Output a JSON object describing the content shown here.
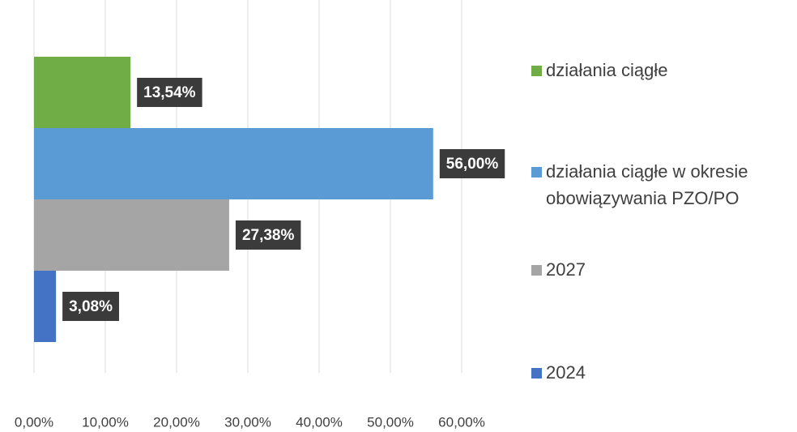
{
  "chart_data": {
    "type": "bar",
    "orientation": "horizontal",
    "categories": [
      null
    ],
    "series": [
      {
        "name": "działania ciągłe",
        "color": "#70ad47",
        "values": [
          13.54
        ],
        "value_labels": [
          "13,54%"
        ]
      },
      {
        "name": "działania ciągłe w okresie obowiązywania PZO/PO",
        "color": "#5b9bd5",
        "values": [
          56.0
        ],
        "value_labels": [
          "56,00%"
        ]
      },
      {
        "name": "2027",
        "color": "#a5a5a5",
        "values": [
          27.38
        ],
        "value_labels": [
          "27,38%"
        ]
      },
      {
        "name": "2024",
        "color": "#4472c4",
        "values": [
          3.08
        ],
        "value_labels": [
          "3,08%"
        ]
      }
    ],
    "xlim": [
      0,
      60
    ],
    "xticks": [
      {
        "value": 0,
        "label": "0,00%"
      },
      {
        "value": 10,
        "label": "10,00%"
      },
      {
        "value": 20,
        "label": "20,00%"
      },
      {
        "value": 30,
        "label": "30,00%"
      },
      {
        "value": 40,
        "label": "40,00%"
      },
      {
        "value": 50,
        "label": "50,00%"
      },
      {
        "value": 60,
        "label": "60,00%"
      }
    ],
    "grid": true,
    "legend": "right"
  }
}
